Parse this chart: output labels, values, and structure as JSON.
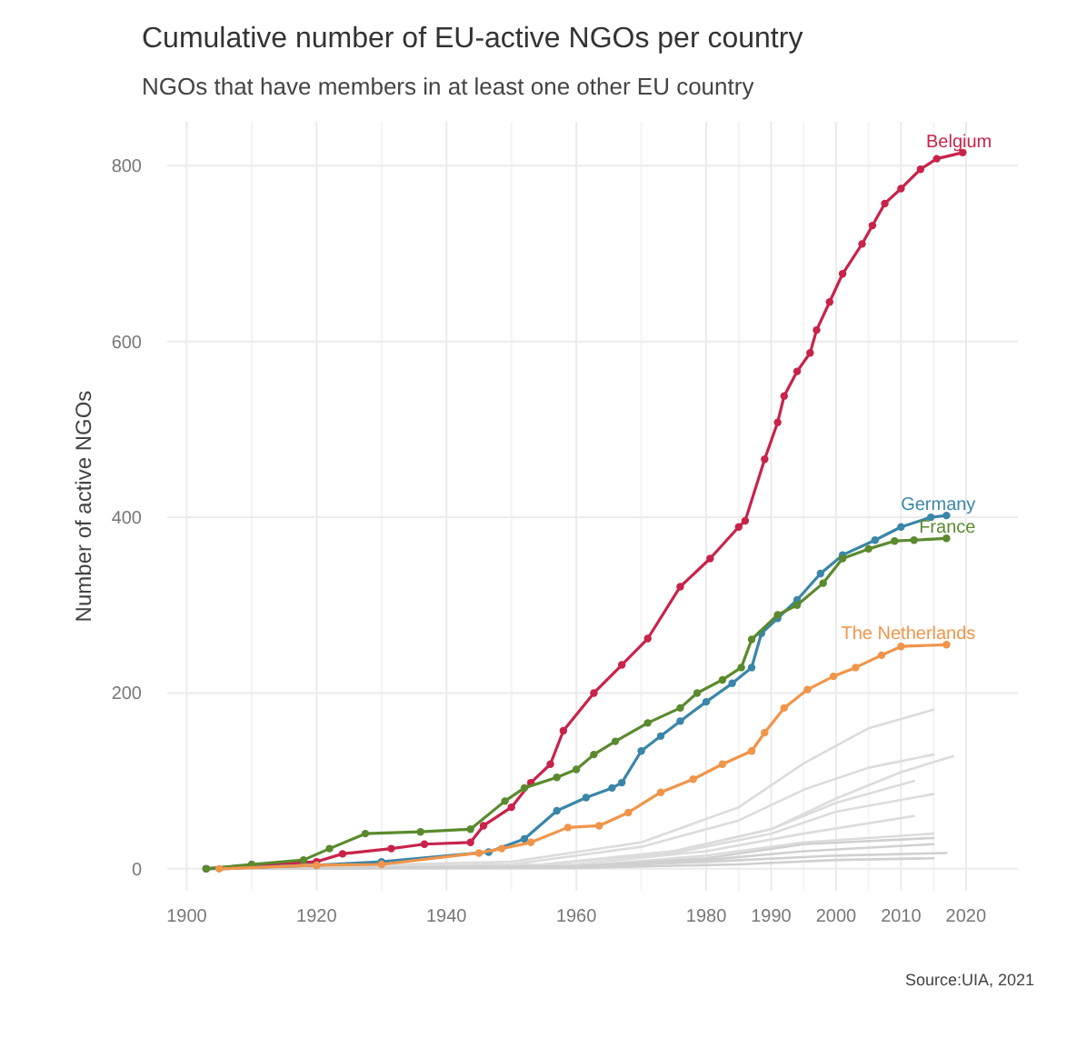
{
  "chart_data": {
    "type": "line",
    "title": "Cumulative number of EU-active NGOs per country",
    "subtitle": "NGOs that have members in at least one other EU country",
    "ylabel": "Number of active NGOs",
    "xlim": [
      1897,
      2028
    ],
    "ylim": [
      -25,
      850
    ],
    "xticks": [
      1900,
      1920,
      1940,
      1960,
      1980,
      1990,
      2000,
      2010,
      2020
    ],
    "yticks": [
      0,
      200,
      400,
      600,
      800
    ],
    "grid": true,
    "annotations": [
      "Source:UIA, 2021"
    ],
    "series": [
      {
        "color": "#dcdcdc",
        "marker": "none",
        "x": [
          1903,
          1950,
          1970,
          1985,
          1995,
          2005,
          2015
        ],
        "values": [
          0,
          8,
          30,
          70,
          120,
          160,
          181
        ]
      },
      {
        "color": "#dcdcdc",
        "marker": "none",
        "x": [
          1905,
          1950,
          1970,
          1985,
          1995,
          2005,
          2015
        ],
        "values": [
          0,
          5,
          25,
          55,
          90,
          115,
          130
        ]
      },
      {
        "color": "#dcdcdc",
        "marker": "none",
        "x": [
          1905,
          1955,
          1975,
          1990,
          2000,
          2010,
          2018
        ],
        "values": [
          0,
          5,
          20,
          45,
          80,
          110,
          128
        ]
      },
      {
        "color": "#dcdcdc",
        "marker": "none",
        "x": [
          1905,
          1955,
          1975,
          1990,
          2000,
          2012
        ],
        "values": [
          0,
          5,
          20,
          45,
          75,
          100
        ]
      },
      {
        "color": "#dcdcdc",
        "marker": "none",
        "x": [
          1905,
          1955,
          1975,
          1990,
          2000,
          2015
        ],
        "values": [
          0,
          5,
          18,
          40,
          65,
          85
        ]
      },
      {
        "color": "#dcdcdc",
        "marker": "none",
        "x": [
          1905,
          1960,
          1980,
          1995,
          2012
        ],
        "values": [
          0,
          5,
          20,
          40,
          60
        ]
      },
      {
        "color": "#dcdcdc",
        "marker": "none",
        "x": [
          1905,
          1960,
          1980,
          1995,
          2015
        ],
        "values": [
          0,
          3,
          15,
          30,
          40
        ]
      },
      {
        "color": "#d0d0d0",
        "marker": "none",
        "x": [
          1905,
          1960,
          1980,
          1995,
          2015
        ],
        "values": [
          0,
          3,
          12,
          28,
          35
        ]
      },
      {
        "color": "#d0d0d0",
        "marker": "none",
        "x": [
          1905,
          1960,
          1980,
          1995,
          2015
        ],
        "values": [
          0,
          2,
          10,
          20,
          28
        ]
      },
      {
        "color": "#d0d0d0",
        "marker": "none",
        "x": [
          1905,
          1960,
          1980,
          2000,
          2017
        ],
        "values": [
          0,
          2,
          8,
          15,
          18
        ]
      },
      {
        "color": "#d0d0d0",
        "marker": "none",
        "x": [
          1905,
          1960,
          1985,
          2000,
          2015
        ],
        "values": [
          0,
          1,
          5,
          10,
          12
        ]
      },
      {
        "name": "Belgium",
        "color": "#c8234a",
        "marker": "circle",
        "x": [
          1903,
          1910,
          1920,
          1924,
          1931.5,
          1936.6,
          1943.7,
          1945.7,
          1950,
          1953,
          1956,
          1958,
          1962.7,
          1967,
          1971,
          1976,
          1980.6,
          1985,
          1986,
          1989,
          1991,
          1992,
          1994,
          1996,
          1997,
          1999,
          2001,
          2004,
          2005.6,
          2007.5,
          2010,
          2013,
          2015.5,
          2019.5
        ],
        "values": [
          0,
          4,
          8,
          17,
          23,
          28,
          30,
          49,
          70,
          98,
          119,
          157,
          200,
          232,
          262,
          321,
          353,
          389,
          396,
          466,
          508,
          538,
          566,
          587,
          613,
          645,
          677,
          711,
          732,
          757,
          774,
          796,
          808,
          815
        ]
      },
      {
        "name": "Germany",
        "color": "#3a86a8",
        "marker": "circle",
        "x": [
          1903,
          1920,
          1930,
          1946.5,
          1952,
          1957,
          1961.5,
          1965.5,
          1967,
          1970,
          1973,
          1976,
          1980,
          1984,
          1987,
          1988.5,
          1991,
          1994,
          1997.6,
          2001,
          2006,
          2010,
          2014.6,
          2017
        ],
        "values": [
          0,
          4,
          8,
          19,
          34,
          66,
          81,
          92,
          98,
          134,
          151,
          168,
          190,
          211,
          229,
          268,
          285,
          306,
          336,
          357,
          374,
          389,
          400,
          402
        ]
      },
      {
        "name": "France",
        "color": "#5b8a2e",
        "marker": "circle",
        "x": [
          1903,
          1910,
          1918,
          1922,
          1927.5,
          1936,
          1943.7,
          1949,
          1952,
          1957,
          1960,
          1962.7,
          1966,
          1971,
          1976,
          1978.6,
          1982.5,
          1985.4,
          1987,
          1991,
          1994,
          1998,
          2001,
          2005,
          2009,
          2012,
          2017
        ],
        "values": [
          0,
          5,
          10,
          23,
          40,
          42,
          45,
          77,
          92,
          104,
          113,
          130,
          145,
          166,
          183,
          200,
          215,
          229,
          261,
          289,
          300,
          325,
          353,
          364,
          373,
          374,
          376
        ]
      },
      {
        "name": "The Netherlands",
        "color": "#f0954a",
        "marker": "circle",
        "x": [
          1905,
          1920,
          1930,
          1945,
          1948.5,
          1953,
          1958.7,
          1963.5,
          1968,
          1973,
          1978,
          1982.5,
          1987,
          1989,
          1992,
          1995.6,
          1999.6,
          2003,
          2007,
          2010,
          2017
        ],
        "values": [
          0,
          4,
          5,
          18,
          23,
          30,
          47,
          49,
          64,
          87,
          102,
          119,
          134,
          155,
          183,
          204,
          219,
          229,
          243,
          253,
          255
        ]
      }
    ]
  }
}
